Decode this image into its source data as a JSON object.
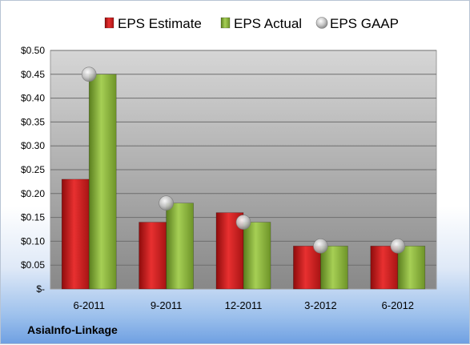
{
  "chart_data": {
    "type": "bar",
    "title": "",
    "xlabel": "",
    "ylabel": "",
    "categories": [
      "6-2011",
      "9-2011",
      "12-2011",
      "3-2012",
      "6-2012"
    ],
    "series": [
      {
        "name": "EPS Estimate",
        "kind": "bar",
        "color": "#d42020",
        "values": [
          0.23,
          0.14,
          0.16,
          0.09,
          0.09
        ]
      },
      {
        "name": "EPS Actual",
        "kind": "bar",
        "color": "#8cb63c",
        "values": [
          0.45,
          0.18,
          0.14,
          0.09,
          0.09
        ]
      },
      {
        "name": "EPS GAAP",
        "kind": "marker",
        "color": "#c8c8c8",
        "values": [
          0.45,
          0.18,
          0.14,
          0.09,
          0.09
        ]
      }
    ],
    "ylim": [
      0,
      0.5
    ],
    "yticks": [
      0,
      0.05,
      0.1,
      0.15,
      0.2,
      0.25,
      0.3,
      0.35,
      0.4,
      0.45,
      0.5
    ],
    "ytick_labels": [
      "$-",
      "$0.05",
      "$0.10",
      "$0.15",
      "$0.20",
      "$0.25",
      "$0.30",
      "$0.35",
      "$0.40",
      "$0.45",
      "$0.50"
    ],
    "grid": true,
    "legend": "top",
    "plot_background": "gradient-gray"
  },
  "footer": {
    "company": "AsiaInfo-Linkage"
  }
}
